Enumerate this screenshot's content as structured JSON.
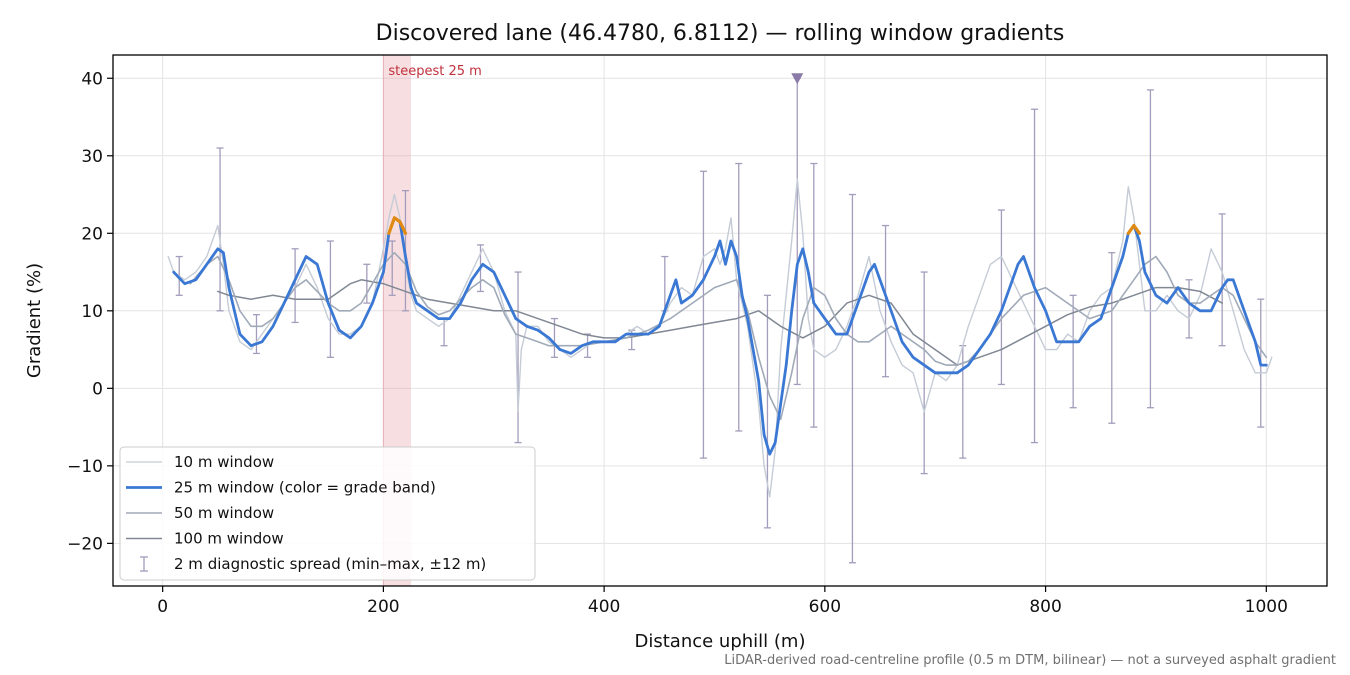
{
  "chart_data": {
    "type": "line",
    "title": "Discovered lane (46.4780, 6.8112) — rolling window gradients",
    "xlabel": "Distance uphill (m)",
    "ylabel": "Gradient (%)",
    "xlim": [
      -45,
      1055
    ],
    "ylim": [
      -25.5,
      43
    ],
    "x_ticks": [
      0,
      200,
      400,
      600,
      800,
      1000
    ],
    "y_ticks": [
      -20,
      -10,
      0,
      10,
      20,
      30,
      40
    ],
    "grid": true,
    "legend_position": "lower-left",
    "footnote": "LiDAR-derived road-centreline profile (0.5 m DTM, bilinear) — not a surveyed asphalt gradient",
    "highlight": {
      "x_start": 200,
      "x_end": 225,
      "label": "steepest 25 m",
      "color": "#e8a0a8"
    },
    "marker": {
      "x": 575,
      "y": 40,
      "color": "#8a7aa8"
    },
    "legend": [
      {
        "label": "10 m window",
        "color": "#c5ccd6",
        "width": 1.3
      },
      {
        "label": "25 m window (color = grade band)",
        "color": "#3a78d4",
        "width": 2.8
      },
      {
        "label": "50 m window",
        "color": "#a0aab8",
        "width": 1.5
      },
      {
        "label": "100 m window",
        "color": "#808894",
        "width": 1.5
      },
      {
        "label": "2 m diagnostic spread (min–max, ±12 m)",
        "color": "#a49cbc",
        "width": 1.3
      }
    ],
    "series": [
      {
        "key": "w10",
        "color": "#c5ccd6",
        "x": [
          5,
          10,
          20,
          30,
          40,
          50,
          55,
          60,
          65,
          70,
          80,
          90,
          100,
          110,
          120,
          130,
          140,
          150,
          160,
          170,
          180,
          190,
          200,
          205,
          210,
          215,
          220,
          225,
          230,
          240,
          250,
          260,
          270,
          280,
          290,
          300,
          310,
          320,
          322,
          325,
          330,
          340,
          350,
          360,
          370,
          380,
          390,
          400,
          410,
          420,
          430,
          440,
          450,
          460,
          470,
          480,
          490,
          500,
          505,
          510,
          515,
          520,
          525,
          530,
          540,
          545,
          550,
          555,
          560,
          570,
          575,
          580,
          585,
          590,
          600,
          610,
          620,
          630,
          640,
          650,
          660,
          670,
          680,
          690,
          700,
          710,
          720,
          730,
          740,
          750,
          760,
          770,
          780,
          790,
          800,
          810,
          820,
          830,
          840,
          850,
          860,
          870,
          875,
          880,
          885,
          890,
          900,
          910,
          920,
          930,
          940,
          950,
          960,
          970,
          980,
          990,
          1000,
          1005
        ],
        "y": [
          17,
          15,
          14,
          15,
          17,
          21,
          16,
          10,
          8,
          6,
          5,
          7,
          9,
          11,
          13,
          16,
          13,
          9,
          7,
          7,
          8,
          11,
          18,
          22,
          25,
          22,
          16,
          12,
          10,
          9,
          8,
          9,
          12,
          15,
          18,
          15,
          10,
          7,
          -3,
          5,
          8,
          8,
          6,
          5,
          4,
          5,
          6,
          6,
          6,
          7,
          8,
          7,
          8,
          11,
          13,
          12,
          17,
          18,
          16,
          18,
          22,
          14,
          11,
          8,
          -2,
          -10,
          -14,
          -8,
          5,
          19,
          27,
          20,
          9,
          5,
          4,
          5,
          8,
          12,
          17,
          10,
          6,
          3,
          2,
          -3,
          2,
          1,
          3,
          8,
          12,
          16,
          17,
          14,
          11,
          8,
          5,
          5,
          7,
          6,
          10,
          12,
          13,
          19,
          26,
          22,
          16,
          10,
          10,
          12,
          10,
          9,
          12,
          18,
          15,
          10,
          5,
          2,
          2,
          4
        ]
      },
      {
        "key": "w25",
        "color": "#3a78d4",
        "x": [
          10,
          20,
          30,
          40,
          50,
          55,
          60,
          70,
          80,
          90,
          100,
          110,
          120,
          130,
          140,
          150,
          160,
          170,
          180,
          190,
          200,
          205,
          210,
          215,
          220,
          225,
          230,
          240,
          250,
          260,
          270,
          280,
          290,
          300,
          310,
          320,
          330,
          340,
          350,
          360,
          370,
          380,
          390,
          400,
          410,
          420,
          430,
          440,
          450,
          460,
          465,
          470,
          480,
          490,
          500,
          505,
          510,
          515,
          520,
          525,
          530,
          540,
          545,
          550,
          555,
          560,
          565,
          570,
          575,
          580,
          585,
          590,
          600,
          610,
          620,
          630,
          640,
          645,
          650,
          660,
          670,
          680,
          690,
          700,
          710,
          720,
          730,
          740,
          750,
          760,
          770,
          775,
          780,
          790,
          800,
          810,
          820,
          830,
          840,
          850,
          860,
          870,
          875,
          880,
          885,
          890,
          900,
          910,
          920,
          930,
          940,
          950,
          960,
          965,
          970,
          980,
          990,
          995,
          1000
        ],
        "y": [
          15,
          13.5,
          14,
          16,
          18,
          17.5,
          13,
          7,
          5.5,
          6,
          8,
          11,
          14,
          17,
          16,
          11,
          7.5,
          6.5,
          8,
          11,
          15,
          20,
          22,
          21.5,
          17,
          13,
          11,
          10,
          9,
          9,
          11,
          14,
          16,
          15,
          12,
          9,
          8,
          7.5,
          6.5,
          5,
          4.5,
          5.5,
          6,
          6,
          6,
          7,
          7,
          7,
          8,
          12,
          14,
          11,
          12,
          14,
          17,
          19,
          16,
          19,
          17,
          12,
          9,
          1,
          -6,
          -8.5,
          -7,
          -2,
          3,
          10,
          16,
          18,
          15,
          11,
          9,
          7,
          7,
          11,
          15,
          16,
          14,
          10,
          6,
          4,
          3,
          2,
          2,
          2,
          3,
          5,
          7,
          10,
          14,
          16,
          17,
          13,
          10,
          6,
          6,
          6,
          8,
          9,
          13,
          17,
          20,
          21,
          19,
          15,
          12,
          11,
          13,
          11,
          10,
          10,
          13,
          14,
          14,
          10,
          6,
          3,
          3
        ]
      },
      {
        "key": "w50",
        "color": "#a0aab8",
        "x": [
          25,
          40,
          50,
          60,
          70,
          80,
          90,
          100,
          110,
          120,
          130,
          140,
          150,
          160,
          170,
          180,
          190,
          200,
          210,
          220,
          230,
          240,
          250,
          260,
          270,
          280,
          290,
          300,
          310,
          320,
          330,
          340,
          350,
          360,
          380,
          400,
          420,
          440,
          460,
          480,
          500,
          520,
          530,
          540,
          550,
          560,
          570,
          580,
          590,
          600,
          610,
          620,
          630,
          640,
          650,
          660,
          670,
          680,
          690,
          700,
          710,
          720,
          730,
          740,
          760,
          780,
          800,
          820,
          840,
          860,
          880,
          890,
          900,
          910,
          920,
          930,
          940,
          950,
          960,
          970,
          980,
          990,
          1000
        ],
        "y": [
          13.5,
          16,
          17,
          14,
          10,
          8,
          8,
          9,
          11,
          13,
          14,
          12.5,
          11,
          10,
          10,
          11,
          13.5,
          16,
          17.5,
          16,
          12.5,
          10.5,
          9.5,
          10,
          11.5,
          13,
          14,
          13,
          9.5,
          7,
          6.5,
          6,
          5.5,
          5.5,
          5.5,
          6,
          6.5,
          7.5,
          9,
          11,
          13,
          14,
          10,
          4,
          -1,
          -4,
          2,
          9,
          13,
          12,
          9,
          7,
          6,
          6,
          7,
          8,
          7,
          6,
          5,
          3.5,
          3,
          3,
          3.5,
          5,
          9,
          12,
          13,
          11,
          9,
          10,
          14,
          16,
          17,
          15,
          12,
          11,
          11,
          12,
          13,
          12,
          9,
          6,
          4
        ]
      },
      {
        "key": "w100",
        "color": "#808894",
        "x": [
          50,
          60,
          80,
          100,
          120,
          150,
          170,
          180,
          200,
          220,
          240,
          260,
          280,
          300,
          320,
          340,
          360,
          380,
          400,
          420,
          440,
          460,
          480,
          500,
          520,
          540,
          560,
          580,
          600,
          620,
          640,
          660,
          680,
          700,
          720,
          740,
          760,
          780,
          800,
          820,
          840,
          860,
          880,
          900,
          920,
          940,
          960
        ],
        "y": [
          12.5,
          12,
          11.5,
          12,
          11.5,
          11.5,
          13.5,
          14,
          13.5,
          12.5,
          11.5,
          11,
          10.5,
          10,
          10,
          9,
          8,
          7,
          6.5,
          6.5,
          7,
          7.5,
          8,
          8.5,
          9,
          10,
          8,
          6.5,
          8,
          11,
          12,
          11,
          7,
          5,
          3,
          4,
          5,
          6.5,
          8,
          9.5,
          10.5,
          11,
          12,
          13,
          13,
          12.5,
          11
        ]
      }
    ],
    "steep_segments": [
      {
        "x": [
          205,
          210,
          215,
          220
        ],
        "y": [
          20,
          22,
          21.5,
          20
        ],
        "color": "#e08a12"
      },
      {
        "x": [
          875,
          880,
          885
        ],
        "y": [
          20,
          21,
          20
        ],
        "color": "#e08a12"
      }
    ],
    "error_bars": {
      "x": [
        15,
        52,
        85,
        120,
        152,
        185,
        208,
        220,
        255,
        288,
        322,
        355,
        385,
        425,
        455,
        490,
        522,
        548,
        575,
        590,
        625,
        655,
        690,
        725,
        760,
        790,
        825,
        860,
        895,
        930,
        960,
        995
      ],
      "low": [
        12,
        10,
        4.5,
        8.5,
        4,
        11,
        12,
        10,
        5.5,
        12.5,
        -7,
        4,
        4,
        5,
        10,
        -9,
        -5.5,
        -18,
        0.5,
        -5,
        -22.5,
        1.5,
        -11,
        -9,
        0.5,
        -7,
        -2.5,
        -4.5,
        -2.5,
        6.5,
        5.5,
        -5
      ],
      "high": [
        17,
        31,
        9.5,
        18,
        19,
        16,
        19,
        25.5,
        9,
        18.5,
        15,
        9,
        7,
        7.5,
        17,
        28,
        29,
        12,
        40,
        29,
        25,
        21,
        15,
        5.5,
        23,
        36,
        12,
        17.5,
        38.5,
        14,
        22.5,
        11.5
      ]
    }
  }
}
